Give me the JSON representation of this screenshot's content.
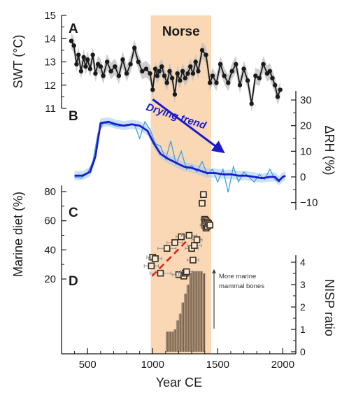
{
  "chart_data": {
    "type": "multi-panel",
    "x_axis": {
      "label": "Year CE",
      "ticks": [
        500,
        1000,
        1500,
        2000
      ],
      "range": [
        300,
        2100
      ]
    },
    "norse_period": {
      "label": "Norse",
      "range": [
        985,
        1450
      ],
      "color": "#fbd8b5"
    },
    "panels": [
      {
        "letter": "A",
        "ylabel": "SWT (°C)",
        "yticks": [
          11,
          12,
          13,
          14,
          15
        ],
        "yrange": [
          10.8,
          15.0
        ],
        "series": [
          {
            "x": [
              375,
              395,
              415,
              430,
              450,
              470,
              485,
              500,
              520,
              540,
              560,
              580,
              600,
              620,
              650,
              680,
              710,
              740,
              770,
              800,
              830,
              860,
              890,
              920,
              950,
              980,
              1000,
              1020,
              1035,
              1050,
              1070,
              1090,
              1110,
              1130,
              1150,
              1170,
              1190,
              1210,
              1230,
              1250,
              1270,
              1290,
              1310,
              1330,
              1350,
              1380,
              1410,
              1440,
              1460,
              1490,
              1520,
              1550,
              1580,
              1610,
              1640,
              1670,
              1700,
              1730,
              1760,
              1790,
              1820,
              1850,
              1880,
              1900,
              1920,
              1940,
              1960,
              1980
            ],
            "y": [
              13.9,
              13.7,
              12.9,
              13.3,
              12.6,
              13.2,
              12.8,
              13.1,
              12.7,
              13.3,
              12.5,
              12.9,
              12.8,
              12.4,
              13.0,
              12.6,
              12.8,
              12.4,
              13.1,
              12.5,
              12.9,
              13.6,
              13.0,
              12.6,
              12.7,
              12.5,
              11.8,
              12.7,
              12.4,
              12.6,
              12.8,
              12.4,
              12.1,
              12.6,
              12.3,
              11.6,
              12.5,
              12.2,
              12.6,
              12.3,
              12.5,
              12.8,
              12.5,
              13.0,
              12.6,
              13.5,
              13.3,
              12.1,
              12.4,
              12.1,
              12.9,
              12.4,
              12.1,
              12.6,
              12.9,
              12.0,
              12.7,
              12.2,
              11.2,
              12.4,
              12.3,
              12.9,
              12.5,
              12.6,
              12.3,
              12.0,
              11.5,
              11.8
            ]
          }
        ]
      },
      {
        "letter": "B",
        "ylabel": "ΔRH (%)",
        "yticks": [
          -10,
          0,
          10,
          20,
          30
        ],
        "yrange": [
          -15,
          32
        ],
        "arrow_label": "Drying trend",
        "series": [
          {
            "name": "smoothed",
            "color": "#1b1bcc",
            "x": [
              400,
              460,
              520,
              560,
              600,
              660,
              720,
              780,
              840,
              900,
              960,
              1010,
              1060,
              1120,
              1180,
              1240,
              1300,
              1360,
              1420,
              1480,
              1540,
              1600,
              1660,
              1720,
              1780,
              1840,
              1900,
              1940,
              1970,
              2000,
              2020
            ],
            "y": [
              0.5,
              0.5,
              2.0,
              8.0,
              21.0,
              21.5,
              20.5,
              20.0,
              20.5,
              20.0,
              18.0,
              13.0,
              9.0,
              7.0,
              5.5,
              4.0,
              3.5,
              2.5,
              1.5,
              1.5,
              1.0,
              1.0,
              0.5,
              0.5,
              0.0,
              -0.5,
              0.0,
              0.0,
              -1.5,
              0.0,
              0.5
            ]
          },
          {
            "name": "raw",
            "color": "#3aa0dd",
            "x": [
              400,
              450,
              500,
              540,
              580,
              620,
              680,
              740,
              800,
              860,
              900,
              940,
              980,
              1020,
              1060,
              1100,
              1140,
              1180,
              1220,
              1260,
              1300,
              1340,
              1380,
              1420,
              1460,
              1500,
              1540,
              1580,
              1620,
              1660,
              1700,
              1740,
              1780,
              1820,
              1860,
              1900,
              1940,
              1970,
              2000
            ],
            "y": [
              0.0,
              -0.5,
              1.5,
              6.0,
              17.0,
              21.0,
              20.5,
              19.5,
              20.5,
              20.5,
              15.0,
              21.5,
              18.5,
              13.0,
              12.0,
              7.0,
              14.0,
              5.0,
              10.0,
              3.0,
              4.5,
              2.0,
              6.0,
              1.0,
              3.0,
              -2.0,
              3.0,
              -6.0,
              4.0,
              -2.0,
              2.0,
              0.0,
              -2.0,
              1.0,
              -1.0,
              3.0,
              -1.0,
              -2.0,
              0.5
            ]
          }
        ]
      },
      {
        "letter": "C",
        "ylabel": "Marine diet (%)",
        "yticks": [
          20,
          40,
          60,
          80
        ],
        "yrange": [
          15,
          85
        ],
        "series": [
          {
            "name": "samples",
            "x": [
              990,
              1000,
              1020,
              1060,
              1110,
              1170,
              1200,
              1220,
              1240,
              1250,
              1260,
              1280,
              1300,
              1310,
              1320,
              1340,
              1380,
              1390,
              1400,
              1400,
              1410,
              1410,
              1420,
              1420,
              1430,
              1440
            ],
            "y": [
              29,
              35,
              34,
              24,
              41,
              45,
              23,
              49,
              22,
              24,
              25,
              50,
              41,
              33,
              43,
              47,
              72,
              78,
              57,
              61,
              60,
              55,
              59,
              56,
              58,
              57
            ],
            "xerr": [
              55,
              45,
              50,
              80,
              70,
              60,
              50,
              40,
              60,
              50,
              45,
              60,
              50,
              45,
              55,
              40,
              25,
              25,
              35,
              30,
              25,
              30,
              30,
              25,
              30,
              25
            ]
          }
        ],
        "trend": {
          "x": [
            995,
            1260
          ],
          "y": [
            22,
            46
          ],
          "color": "#e02020"
        }
      },
      {
        "letter": "D",
        "ylabel": "NISP ratio",
        "yticks": [
          0,
          1,
          2,
          3,
          4
        ],
        "yrange": [
          0,
          4.5
        ],
        "annotation": [
          "More marine",
          "mammal bones"
        ],
        "bars": {
          "x": [
            1110,
            1130,
            1150,
            1170,
            1190,
            1210,
            1230,
            1250,
            1270,
            1290,
            1310,
            1330,
            1350,
            1370,
            1390
          ],
          "y": [
            0.9,
            0.9,
            0.9,
            1.0,
            1.4,
            1.7,
            2.2,
            2.6,
            3.0,
            3.5,
            3.6,
            3.6,
            3.6,
            3.6,
            3.5
          ],
          "color": "#7a6048"
        }
      }
    ]
  }
}
